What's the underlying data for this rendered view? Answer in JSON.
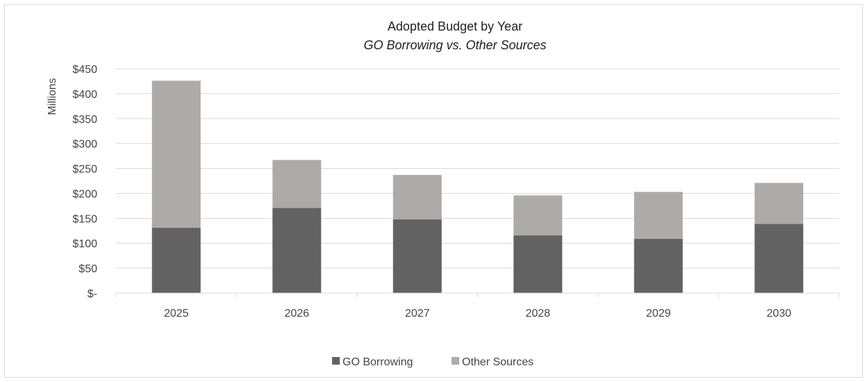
{
  "chart_data": {
    "type": "bar",
    "stacked": true,
    "title": "Adopted Budget by Year",
    "subtitle": "GO Borrowing vs. Other Sources",
    "ylabel": "Millions",
    "xlabel": "",
    "ylim": [
      0,
      450
    ],
    "y_ticks": [
      {
        "value": 0,
        "label": "$-"
      },
      {
        "value": 50,
        "label": "$50"
      },
      {
        "value": 100,
        "label": "$100"
      },
      {
        "value": 150,
        "label": "$150"
      },
      {
        "value": 200,
        "label": "$200"
      },
      {
        "value": 250,
        "label": "$250"
      },
      {
        "value": 300,
        "label": "$300"
      },
      {
        "value": 350,
        "label": "$350"
      },
      {
        "value": 400,
        "label": "$400"
      },
      {
        "value": 450,
        "label": "$450"
      }
    ],
    "categories": [
      "2025",
      "2026",
      "2027",
      "2028",
      "2029",
      "2030"
    ],
    "series": [
      {
        "name": "GO Borrowing",
        "color": "#626262",
        "values": [
          131,
          171,
          148,
          116,
          109,
          139
        ]
      },
      {
        "name": "Other Sources",
        "color": "#aeaaaa",
        "values": [
          295,
          96,
          89,
          80,
          94,
          82
        ]
      }
    ],
    "grid": true,
    "legend_position": "bottom"
  }
}
